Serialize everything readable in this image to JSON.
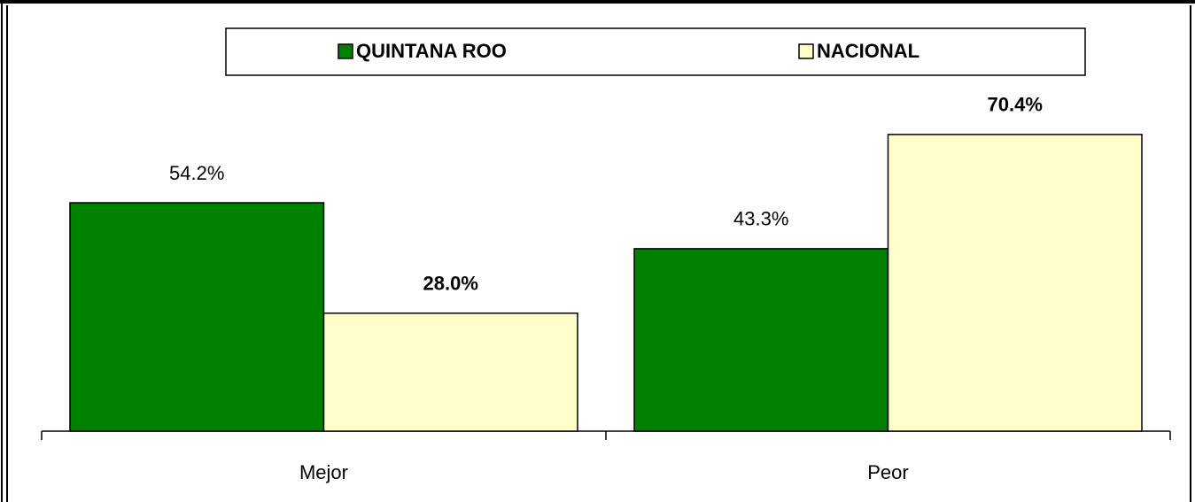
{
  "chart_data": {
    "type": "bar",
    "categories": [
      "Mejor",
      "Peor"
    ],
    "series": [
      {
        "name": "QUINTANA ROO",
        "color": "#008000",
        "values": [
          54.2,
          43.3
        ],
        "value_labels": [
          "54.2%",
          "43.3%"
        ]
      },
      {
        "name": "NACIONAL",
        "color": "#ffffcc",
        "values": [
          28.0,
          70.4
        ],
        "value_labels": [
          "28.0%",
          "70.4%"
        ]
      }
    ],
    "legend": "top"
  }
}
